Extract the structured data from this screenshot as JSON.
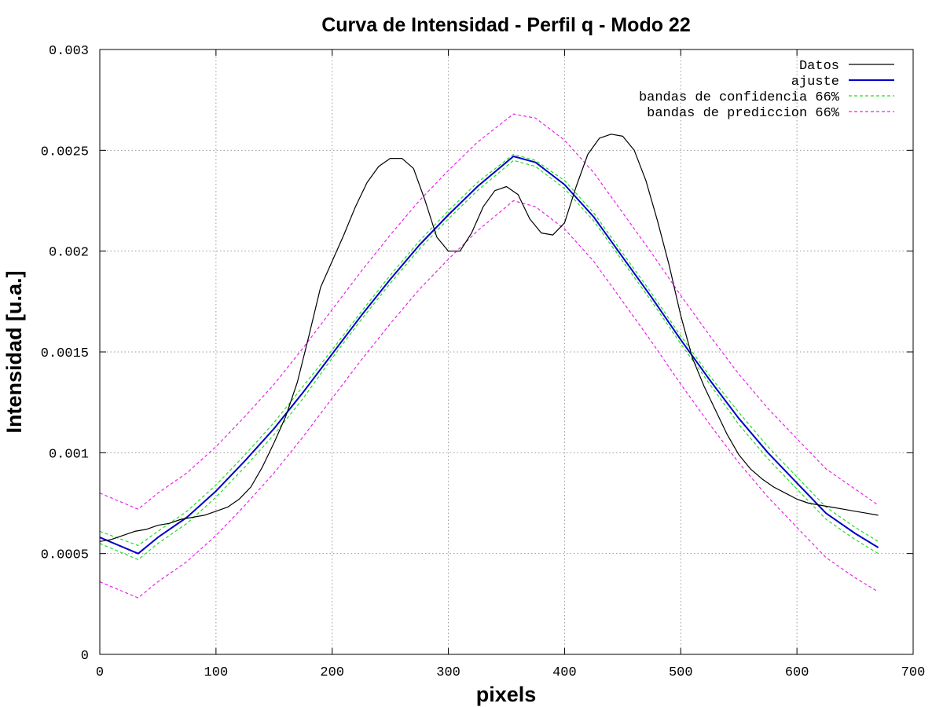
{
  "chart_data": {
    "type": "line",
    "title": "Curva de Intensidad - Perfil q - Modo 22",
    "xlabel": "pixels",
    "ylabel": "Intensidad [u.a.]",
    "xlim": [
      0,
      700
    ],
    "ylim": [
      0,
      0.003
    ],
    "xticks": [
      0,
      100,
      200,
      300,
      400,
      500,
      600,
      700
    ],
    "xtick_labels": [
      "0",
      "100",
      "200",
      "300",
      "400",
      "500",
      "600",
      "700"
    ],
    "yticks": [
      0,
      0.0005,
      0.001,
      0.0015,
      0.002,
      0.0025,
      0.003
    ],
    "ytick_labels": [
      "0",
      "0.0005",
      "0.001",
      "0.0015",
      "0.002",
      "0.0025",
      "0.003"
    ],
    "grid": true,
    "legend_position": "top-right",
    "series": [
      {
        "name": "Datos",
        "color": "#000000",
        "style": "solid",
        "x": [
          0,
          10,
          20,
          30,
          40,
          50,
          60,
          70,
          80,
          90,
          100,
          110,
          120,
          130,
          140,
          150,
          160,
          170,
          180,
          190,
          200,
          210,
          220,
          230,
          240,
          250,
          260,
          270,
          280,
          290,
          300,
          310,
          320,
          330,
          340,
          350,
          360,
          370,
          380,
          390,
          400,
          410,
          420,
          430,
          440,
          450,
          460,
          470,
          480,
          490,
          500,
          510,
          520,
          530,
          540,
          550,
          560,
          570,
          580,
          590,
          600,
          610,
          620,
          630,
          640,
          650,
          660,
          670
        ],
        "y": [
          0.00056,
          0.00057,
          0.00059,
          0.00061,
          0.00062,
          0.00064,
          0.00065,
          0.00067,
          0.00068,
          0.00069,
          0.00071,
          0.00073,
          0.00077,
          0.00083,
          0.00093,
          0.00105,
          0.00118,
          0.00135,
          0.00158,
          0.00182,
          0.00195,
          0.00208,
          0.00222,
          0.00234,
          0.00242,
          0.00246,
          0.00246,
          0.00241,
          0.00225,
          0.00207,
          0.002,
          0.002,
          0.00209,
          0.00222,
          0.0023,
          0.00232,
          0.00228,
          0.00216,
          0.00209,
          0.00208,
          0.00214,
          0.00232,
          0.00248,
          0.00256,
          0.00258,
          0.00257,
          0.0025,
          0.00235,
          0.00215,
          0.00193,
          0.00168,
          0.00147,
          0.00133,
          0.00121,
          0.00109,
          0.00099,
          0.00092,
          0.00087,
          0.00083,
          0.0008,
          0.00077,
          0.00075,
          0.00074,
          0.00073,
          0.00072,
          0.00071,
          0.0007,
          0.00069
        ]
      },
      {
        "name": "ajuste",
        "color": "#0000cc",
        "style": "solid",
        "x": [
          0,
          33,
          50,
          75,
          100,
          125,
          150,
          175,
          200,
          225,
          250,
          275,
          300,
          325,
          356,
          375,
          400,
          425,
          450,
          475,
          500,
          525,
          550,
          575,
          600,
          625,
          650,
          670
        ],
        "y": [
          0.00058,
          0.0005,
          0.00058,
          0.00068,
          0.00081,
          0.00096,
          0.00112,
          0.0013,
          0.00149,
          0.00168,
          0.00186,
          0.00203,
          0.00218,
          0.00232,
          0.00247,
          0.00244,
          0.00233,
          0.00217,
          0.00197,
          0.00177,
          0.00156,
          0.00136,
          0.00117,
          0.001,
          0.00085,
          0.0007,
          0.0006,
          0.00053
        ]
      },
      {
        "name": "bandas de confidencia 66%",
        "color": "#22dd22",
        "style": "dashed",
        "x": [
          0,
          33,
          50,
          75,
          100,
          125,
          150,
          175,
          200,
          225,
          250,
          275,
          300,
          325,
          356,
          375,
          400,
          425,
          450,
          475,
          500,
          525,
          550,
          575,
          600,
          625,
          650,
          670
        ],
        "y_upper": [
          0.00061,
          0.00054,
          0.00061,
          0.00071,
          0.00084,
          0.00099,
          0.00115,
          0.00133,
          0.00151,
          0.0017,
          0.00188,
          0.00205,
          0.0022,
          0.00234,
          0.00248,
          0.00245,
          0.00235,
          0.00219,
          0.00199,
          0.00179,
          0.00158,
          0.00138,
          0.0012,
          0.00103,
          0.00088,
          0.00073,
          0.00063,
          0.00056
        ],
        "y_lower": [
          0.00055,
          0.00047,
          0.00055,
          0.00065,
          0.00078,
          0.00093,
          0.00109,
          0.00127,
          0.00147,
          0.00166,
          0.00184,
          0.00201,
          0.00216,
          0.0023,
          0.00245,
          0.00242,
          0.00231,
          0.00215,
          0.00195,
          0.00175,
          0.00154,
          0.00134,
          0.00114,
          0.00097,
          0.00082,
          0.00067,
          0.00057,
          0.0005
        ]
      },
      {
        "name": "bandas de prediccion 66%",
        "color": "#ee22ee",
        "style": "dashed",
        "x": [
          0,
          33,
          50,
          75,
          100,
          125,
          150,
          175,
          200,
          225,
          250,
          275,
          300,
          325,
          356,
          375,
          400,
          425,
          450,
          475,
          500,
          525,
          550,
          575,
          600,
          625,
          650,
          670
        ],
        "y_upper": [
          0.0008,
          0.00072,
          0.0008,
          0.0009,
          0.00103,
          0.00118,
          0.00134,
          0.00152,
          0.00171,
          0.0019,
          0.00208,
          0.00225,
          0.0024,
          0.00254,
          0.00268,
          0.00266,
          0.00255,
          0.00239,
          0.00219,
          0.00199,
          0.00178,
          0.00158,
          0.00139,
          0.00122,
          0.00107,
          0.00092,
          0.00082,
          0.00074
        ],
        "y_lower": [
          0.00036,
          0.00028,
          0.00036,
          0.00046,
          0.00059,
          0.00074,
          0.0009,
          0.00108,
          0.00127,
          0.00146,
          0.00164,
          0.00181,
          0.00196,
          0.0021,
          0.00225,
          0.00222,
          0.00211,
          0.00195,
          0.00175,
          0.00155,
          0.00134,
          0.00114,
          0.00095,
          0.00078,
          0.00063,
          0.00048,
          0.00038,
          0.00031
        ]
      }
    ]
  }
}
